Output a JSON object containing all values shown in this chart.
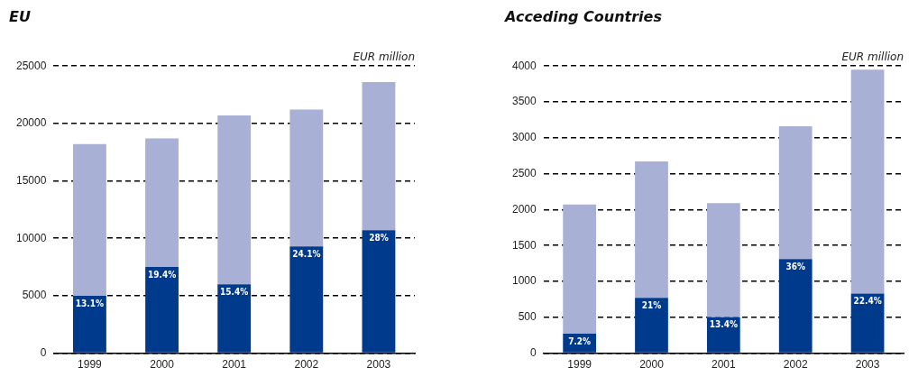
{
  "chart_data": [
    {
      "type": "bar",
      "title": "EU",
      "ylabel": "EUR million",
      "categories": [
        "1999",
        "2000",
        "2001",
        "2002",
        "2003"
      ],
      "stacked": true,
      "grid": "y",
      "legend": false,
      "ylim": [
        0,
        25000
      ],
      "yticks": [
        0,
        5000,
        10000,
        15000,
        20000,
        25000
      ],
      "series": [
        {
          "color": "#003a8c",
          "values": [
            5000,
            7500,
            6000,
            9300,
            10700
          ]
        },
        {
          "color": "#a9b0d6",
          "values": [
            13200,
            11200,
            14700,
            11900,
            12900
          ]
        }
      ],
      "annotations": [
        {
          "text": "13.1%",
          "x": "1999",
          "y": 5000
        },
        {
          "text": "19.4%",
          "x": "2000",
          "y": 7500
        },
        {
          "text": "15.4%",
          "x": "2001",
          "y": 6000
        },
        {
          "text": "24.1%",
          "x": "2002",
          "y": 9300
        },
        {
          "text": "28%",
          "x": "2003",
          "y": 10700
        }
      ]
    },
    {
      "type": "bar",
      "title": "Acceding Countries",
      "ylabel": "EUR million",
      "categories": [
        "1999",
        "2000",
        "2001",
        "2002",
        "2003"
      ],
      "stacked": true,
      "grid": "y",
      "legend": false,
      "ylim": [
        0,
        4000
      ],
      "yticks": [
        0,
        500,
        1000,
        1500,
        2000,
        2500,
        3000,
        3500,
        4000
      ],
      "series": [
        {
          "color": "#003a8c",
          "values": [
            270,
            770,
            500,
            1310,
            830
          ]
        },
        {
          "color": "#a9b0d6",
          "values": [
            1800,
            1900,
            1590,
            1850,
            3120
          ]
        }
      ],
      "annotations": [
        {
          "text": "7.2%",
          "x": "1999",
          "y": 270
        },
        {
          "text": "21%",
          "x": "2000",
          "y": 770
        },
        {
          "text": "13.4%",
          "x": "2001",
          "y": 500
        },
        {
          "text": "36%",
          "x": "2002",
          "y": 1310
        },
        {
          "text": "22.4%",
          "x": "2003",
          "y": 830
        }
      ]
    }
  ]
}
